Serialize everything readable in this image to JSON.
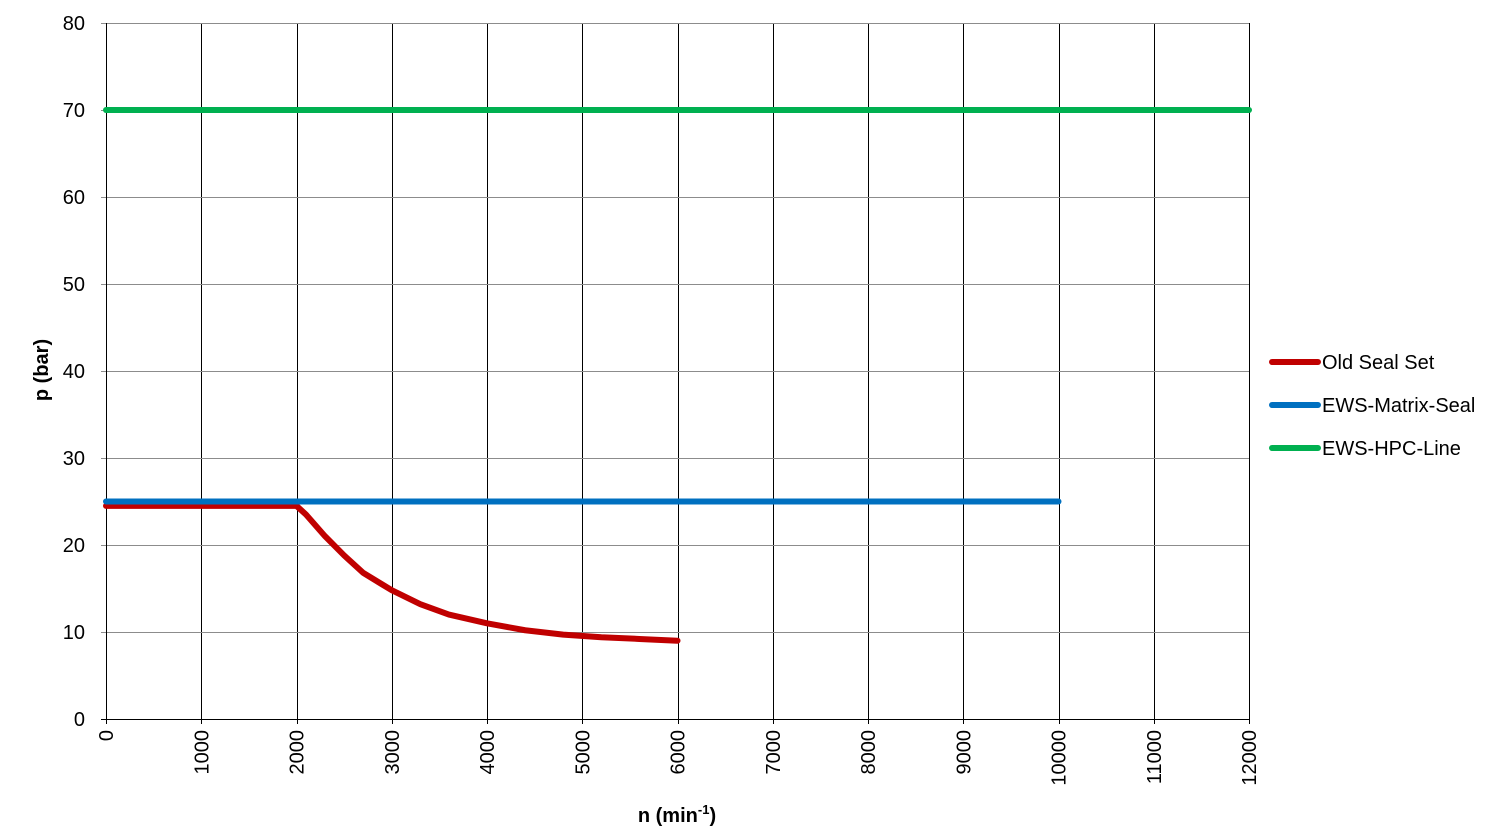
{
  "chart_data": {
    "type": "line",
    "title": "",
    "xlabel": "n (min",
    "xlabel_sup": "-1",
    "xlabel_suffix": ")",
    "ylabel": "p (bar)",
    "xlim": [
      0,
      12000
    ],
    "ylim": [
      0,
      80
    ],
    "x_ticks": [
      "0",
      "1000",
      "2000",
      "3000",
      "4000",
      "5000",
      "6000",
      "7000",
      "8000",
      "9000",
      "10000",
      "11000",
      "12000"
    ],
    "y_ticks": [
      "0",
      "10",
      "20",
      "30",
      "40",
      "50",
      "60",
      "70",
      "80"
    ],
    "grid": true,
    "legend_position": "right",
    "series": [
      {
        "name": "Old Seal Set",
        "color": "#C00000",
        "x": [
          0,
          2000,
          2100,
          2300,
          2500,
          2700,
          3000,
          3300,
          3600,
          4000,
          4400,
          4800,
          5200,
          5600,
          6000
        ],
        "y": [
          24.5,
          24.5,
          23.5,
          21.0,
          18.8,
          16.8,
          14.8,
          13.2,
          12.0,
          11.0,
          10.2,
          9.7,
          9.4,
          9.2,
          9.0
        ]
      },
      {
        "name": "EWS-Matrix-Seal",
        "color": "#0070C0",
        "x": [
          0,
          10000
        ],
        "y": [
          25,
          25
        ]
      },
      {
        "name": "EWS-HPC-Line",
        "color": "#00B050",
        "x": [
          0,
          12000
        ],
        "y": [
          70,
          70
        ]
      }
    ]
  }
}
